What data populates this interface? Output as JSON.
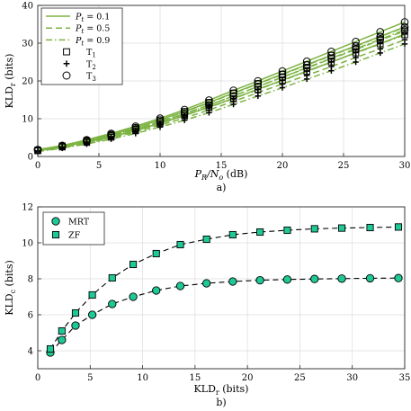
{
  "chart_data": [
    {
      "type": "line",
      "panel_label": "a)",
      "xlabel_main": "P",
      "xlabel_sub1": "R",
      "xlabel_mid": "/N",
      "xlabel_sub2": "o",
      "xlabel_unit": " (dB)",
      "ylabel_main": "KLD",
      "ylabel_sub": "r",
      "ylabel_unit": " (bits)",
      "xlim": [
        0,
        30
      ],
      "ylim": [
        0,
        40
      ],
      "xticks": [
        "0",
        "5",
        "10",
        "15",
        "20",
        "25",
        "30"
      ],
      "yticks": [
        "0",
        "10",
        "20",
        "30",
        "40"
      ],
      "grid": true,
      "legend_position": "top-left",
      "legend": [
        {
          "label_prefix": "P",
          "label_sub": "t",
          "label_suffix": " = 0.1",
          "style": "solid"
        },
        {
          "label_prefix": "P",
          "label_sub": "t",
          "label_suffix": " = 0.5",
          "style": "dashed"
        },
        {
          "label_prefix": "P",
          "label_sub": "t",
          "label_suffix": " = 0.9",
          "style": "dashdot"
        },
        {
          "label_prefix": "T",
          "label_sub": "1",
          "label_suffix": "",
          "marker": "square"
        },
        {
          "label_prefix": "T",
          "label_sub": "2",
          "label_suffix": "",
          "marker": "plus"
        },
        {
          "label_prefix": "T",
          "label_sub": "3",
          "label_suffix": "",
          "marker": "circle"
        }
      ],
      "x": [
        0,
        2,
        4,
        6,
        8,
        10,
        12,
        14,
        16,
        18,
        20,
        22,
        24,
        26,
        28,
        30
      ],
      "line_x": [
        0,
        1,
        2,
        3,
        4,
        5,
        6,
        7,
        8,
        9,
        10,
        11,
        12,
        13,
        14,
        15,
        16,
        17,
        18,
        19,
        20,
        21,
        22,
        23,
        24,
        25,
        26,
        27,
        28,
        29,
        30
      ],
      "line_color": "#7cb342",
      "series": [
        {
          "style": "solid",
          "name": "P_t = 0.1",
          "T": "T3",
          "marker": "circle",
          "values": [
            1.8,
            2.9,
            4.4,
            6.1,
            8.0,
            10.1,
            12.4,
            14.9,
            17.5,
            20.0,
            22.6,
            25.2,
            27.8,
            30.4,
            33.0,
            35.6
          ]
        },
        {
          "style": "solid",
          "name": "P_t = 0.1",
          "T": "T1",
          "marker": "square",
          "values": [
            1.7,
            2.8,
            4.2,
            5.8,
            7.6,
            9.7,
            11.9,
            14.3,
            16.8,
            19.3,
            21.8,
            24.3,
            26.8,
            29.3,
            31.8,
            34.3
          ]
        },
        {
          "style": "solid",
          "name": "P_t = 0.1",
          "T": "T2",
          "marker": "plus",
          "values": [
            1.5,
            2.5,
            3.8,
            5.2,
            6.9,
            8.8,
            10.9,
            13.1,
            15.4,
            17.8,
            20.2,
            22.6,
            25.0,
            27.5,
            29.9,
            32.4
          ]
        },
        {
          "style": "dashed",
          "name": "P_t = 0.5",
          "T": "T3",
          "marker": "circle",
          "values": [
            1.8,
            2.8,
            4.2,
            5.8,
            7.6,
            9.6,
            11.8,
            14.2,
            16.7,
            19.2,
            21.7,
            24.2,
            26.7,
            29.2,
            31.7,
            34.2
          ]
        },
        {
          "style": "dashed",
          "name": "P_t = 0.5",
          "T": "T1",
          "marker": "square",
          "values": [
            1.6,
            2.7,
            4.0,
            5.5,
            7.2,
            9.2,
            11.3,
            13.6,
            16.0,
            18.5,
            21.0,
            23.4,
            25.9,
            28.3,
            30.8,
            33.2
          ]
        },
        {
          "style": "dashed",
          "name": "P_t = 0.5",
          "T": "T2",
          "marker": "plus",
          "values": [
            1.4,
            2.3,
            3.5,
            4.9,
            6.5,
            8.3,
            10.2,
            12.3,
            14.6,
            16.9,
            19.2,
            21.5,
            23.8,
            26.2,
            28.5,
            30.9
          ]
        },
        {
          "style": "dashdot",
          "name": "P_t = 0.9",
          "T": "T3",
          "marker": "circle",
          "values": [
            1.7,
            2.7,
            4.0,
            5.5,
            7.2,
            9.2,
            11.3,
            13.6,
            16.0,
            18.5,
            21.0,
            23.5,
            26.0,
            28.5,
            31.0,
            33.5
          ]
        },
        {
          "style": "dashdot",
          "name": "P_t = 0.9",
          "T": "T1",
          "marker": "square",
          "values": [
            1.5,
            2.5,
            3.7,
            5.1,
            6.8,
            8.7,
            10.8,
            13.0,
            15.3,
            17.7,
            20.1,
            22.5,
            25.0,
            27.4,
            29.8,
            32.2
          ]
        },
        {
          "style": "dashdot",
          "name": "P_t = 0.9",
          "T": "T2",
          "marker": "plus",
          "values": [
            1.3,
            2.2,
            3.3,
            4.6,
            6.1,
            7.8,
            9.6,
            11.6,
            13.8,
            16.0,
            18.2,
            20.5,
            22.7,
            25.0,
            27.4,
            29.8
          ]
        }
      ]
    },
    {
      "type": "line",
      "panel_label": "b)",
      "xlabel_main": "KLD",
      "xlabel_sub": "r",
      "xlabel_unit": " (bits)",
      "ylabel_main": "KLD",
      "ylabel_sub": "c",
      "ylabel_unit": " (bits)",
      "xlim": [
        0,
        35
      ],
      "ylim": [
        3,
        12
      ],
      "xticks": [
        "0",
        "5",
        "10",
        "15",
        "20",
        "25",
        "30",
        "35"
      ],
      "yticks": [
        "4",
        "6",
        "8",
        "10",
        "12"
      ],
      "grid": true,
      "legend_position": "top-left",
      "marker_color": "#1fc996",
      "series": [
        {
          "name": "MRT",
          "marker": "circle",
          "x": [
            1.2,
            2.3,
            3.6,
            5.2,
            7.1,
            9.1,
            11.3,
            13.6,
            16.1,
            18.6,
            21.2,
            23.8,
            26.4,
            29.0,
            31.7,
            34.4
          ],
          "values": [
            3.9,
            4.6,
            5.4,
            6.0,
            6.6,
            7.0,
            7.35,
            7.6,
            7.75,
            7.85,
            7.92,
            7.96,
            7.99,
            8.01,
            8.03,
            8.04
          ]
        },
        {
          "name": "ZF",
          "marker": "square",
          "x": [
            1.2,
            2.3,
            3.6,
            5.2,
            7.1,
            9.1,
            11.3,
            13.6,
            16.1,
            18.6,
            21.2,
            23.8,
            26.4,
            29.0,
            31.7,
            34.4
          ],
          "values": [
            4.1,
            5.1,
            6.1,
            7.1,
            8.05,
            8.8,
            9.4,
            9.9,
            10.2,
            10.45,
            10.6,
            10.7,
            10.78,
            10.82,
            10.85,
            10.88
          ]
        }
      ]
    }
  ]
}
